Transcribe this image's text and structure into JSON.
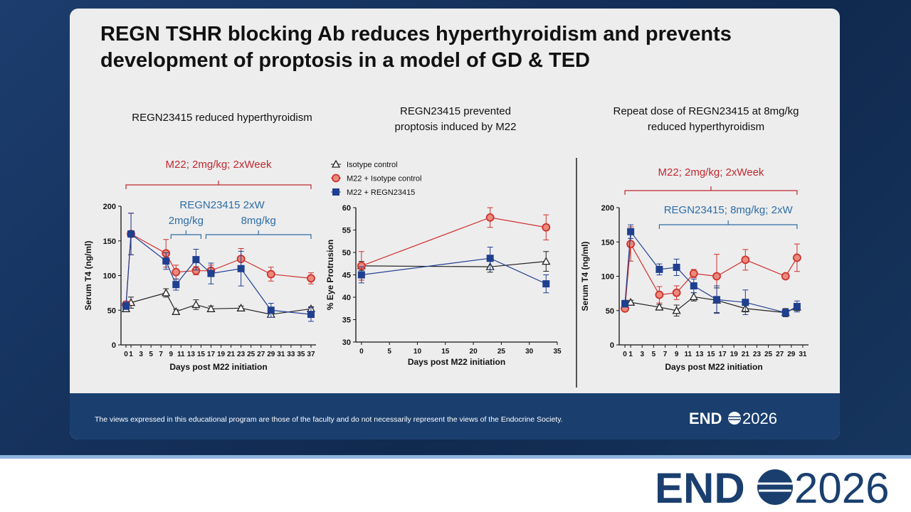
{
  "slide": {
    "title": "REGN TSHR blocking Ab reduces hyperthyroidism and prevents development of proptosis in a model of GD & TED",
    "footer": "The views expressed in this educational program are those of the faculty and do not necessarily represent the views of the Endocrine Society.",
    "logo": {
      "left": "END",
      "right": "2026"
    }
  },
  "chart_data": [
    {
      "type": "line",
      "title": [
        "REGN23415 reduced hyperthyroidism"
      ],
      "xlabel": "Days post M22 initiation",
      "ylabel": "Serum T4 (ng/ml)",
      "x": [
        0,
        1,
        8,
        10,
        14,
        17,
        23,
        29,
        37
      ],
      "series": [
        {
          "color": "#222222",
          "marker": "triangle",
          "values": [
            52,
            61,
            75,
            48,
            58,
            52,
            53,
            44,
            52
          ],
          "errors": [
            4,
            8,
            6,
            3,
            7,
            4,
            3,
            4,
            3
          ]
        },
        {
          "color": "#d0312d",
          "marker": "circle",
          "values": [
            58,
            160,
            132,
            105,
            107,
            107,
            124,
            102,
            96
          ],
          "errors": [
            5,
            30,
            20,
            10,
            6,
            8,
            15,
            10,
            8
          ]
        },
        {
          "color": "#1f3f8f",
          "marker": "square",
          "values": [
            56,
            160,
            121,
            87,
            123,
            103,
            110,
            50,
            44
          ],
          "errors": [
            5,
            30,
            12,
            8,
            15,
            15,
            25,
            10,
            10
          ]
        }
      ],
      "xlim": [
        -1,
        38
      ],
      "xticks": [
        0,
        1,
        3,
        5,
        7,
        9,
        11,
        13,
        15,
        17,
        19,
        21,
        23,
        25,
        27,
        29,
        31,
        33,
        35,
        37
      ],
      "ylim": [
        0,
        200
      ],
      "yticks": [
        0,
        50,
        100,
        150,
        200
      ],
      "annotations": [
        {
          "text": "M22; 2mg/kg; 2xWeek",
          "color": "#c0282d",
          "span": [
            0,
            37
          ]
        },
        {
          "text": "REGN23415 2xW",
          "color": "#2e6da4"
        },
        {
          "text": "2mg/kg",
          "color": "#2e6da4",
          "span": [
            9,
            15
          ]
        },
        {
          "text": "8mg/kg",
          "color": "#2e6da4",
          "span": [
            16,
            37
          ]
        }
      ]
    },
    {
      "type": "line",
      "title": [
        "REGN23415 prevented",
        "proptosis induced by M22"
      ],
      "xlabel": "Days post M22 initiation",
      "ylabel": "% Eye Protrusion",
      "x": [
        0,
        23,
        33
      ],
      "series": [
        {
          "name": "Isotype control",
          "color": "#222222",
          "marker": "triangle",
          "values": [
            47,
            46.8,
            48
          ],
          "errors": [
            1,
            1.2,
            2.2
          ]
        },
        {
          "name": "M22 + Isotype control",
          "color": "#d0312d",
          "marker": "circle",
          "values": [
            47,
            57.8,
            55.6
          ],
          "errors": [
            3.2,
            2.2,
            2.8
          ]
        },
        {
          "name": "M22 + REGN23415",
          "color": "#1f3f8f",
          "marker": "square",
          "values": [
            45,
            48.7,
            43
          ],
          "errors": [
            1.8,
            2.5,
            2
          ]
        }
      ],
      "xlim": [
        -1,
        35
      ],
      "xticks": [
        0,
        5,
        10,
        15,
        20,
        25,
        30,
        35
      ],
      "ylim": [
        30,
        60
      ],
      "yticks": [
        30,
        35,
        40,
        45,
        50,
        55,
        60
      ]
    },
    {
      "type": "line",
      "title": [
        "Repeat dose of REGN23415 at 8mg/kg",
        "reduced hyperthyroidism"
      ],
      "xlabel": "Days post M22 initiation",
      "ylabel": "Serum T4 (ng/ml)",
      "x": [
        0,
        1,
        6,
        9,
        12,
        16,
        21,
        28,
        30
      ],
      "series": [
        {
          "color": "#222222",
          "marker": "triangle",
          "values": [
            58,
            62,
            55,
            50,
            70,
            65,
            53,
            47,
            55
          ],
          "errors": [
            4,
            3,
            4,
            8,
            6,
            18,
            5,
            6,
            5
          ]
        },
        {
          "color": "#d0312d",
          "marker": "circle",
          "values": [
            53,
            147,
            73,
            76,
            104,
            100,
            124,
            100,
            127
          ],
          "errors": [
            4,
            25,
            12,
            10,
            6,
            32,
            15,
            3,
            20
          ]
        },
        {
          "color": "#1f3f8f",
          "marker": "square",
          "values": [
            60,
            165,
            110,
            113,
            86,
            66,
            62,
            47,
            56
          ],
          "errors": [
            5,
            10,
            8,
            12,
            10,
            20,
            18,
            5,
            8
          ]
        }
      ],
      "xlim": [
        -1,
        32
      ],
      "xticks": [
        0,
        1,
        3,
        5,
        7,
        9,
        11,
        13,
        15,
        17,
        19,
        21,
        23,
        25,
        27,
        29,
        31
      ],
      "ylim": [
        0,
        200
      ],
      "yticks": [
        0,
        50,
        100,
        150,
        200
      ],
      "annotations": [
        {
          "text": "M22; 2mg/kg; 2xWeek",
          "color": "#c0282d",
          "span": [
            0,
            30
          ]
        },
        {
          "text": "REGN23415; 8mg/kg; 2xW",
          "color": "#2e6da4",
          "span": [
            6,
            30
          ]
        }
      ]
    }
  ]
}
